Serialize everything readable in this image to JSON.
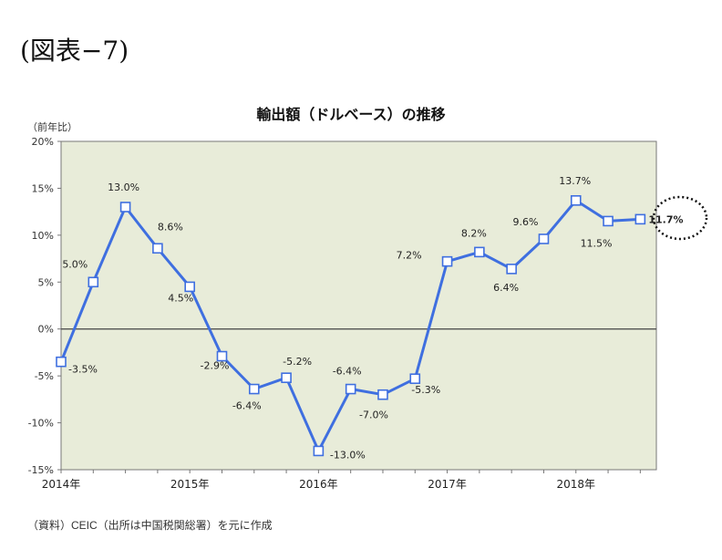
{
  "figure_label": "(図表−7)",
  "source_note": "（資料）CEIC（出所は中国税関総署）を元に作成",
  "colors": {
    "plot_background": "#e8ecd9",
    "line": "#3f6fe0",
    "zero_line": "#444444"
  },
  "chart_data": {
    "type": "line",
    "title": "輸出額（ドルベース）の推移",
    "ylabel": "（前年比）",
    "xlabel": "",
    "ylim": [
      -15,
      20
    ],
    "yticks": [
      -15,
      -10,
      -5,
      0,
      5,
      10,
      15,
      20
    ],
    "ytick_labels": [
      "-15%",
      "-10%",
      "-5%",
      "0%",
      "5%",
      "10%",
      "15%",
      "20%"
    ],
    "x_tick_labels": [
      "2014年",
      "2015年",
      "2016年",
      "2017年",
      "2018年"
    ],
    "grid": false,
    "series": [
      {
        "x": [
          "2014Q1",
          "2014Q2",
          "2014Q3",
          "2014Q4",
          "2015Q1",
          "2015Q2",
          "2015Q3",
          "2015Q4",
          "2016Q1",
          "2016Q2",
          "2016Q3",
          "2016Q4",
          "2017Q1",
          "2017Q2",
          "2017Q3",
          "2017Q4",
          "2018Q1",
          "2018Q2",
          "2018Q3"
        ],
        "values": [
          -3.5,
          5.0,
          13.0,
          8.6,
          4.5,
          -2.9,
          -6.4,
          -5.2,
          -13.0,
          -6.4,
          -7.0,
          -5.3,
          7.2,
          8.2,
          6.4,
          9.6,
          13.7,
          11.5,
          11.7
        ],
        "labels": [
          "-3.5%",
          "5.0%",
          "13.0%",
          "8.6%",
          "4.5%",
          "-2.9%",
          "-6.4%",
          "-5.2%",
          "-13.0%",
          "-6.4%",
          "-7.0%",
          "-5.3%",
          "7.2%",
          "8.2%",
          "6.4%",
          "9.6%",
          "13.7%",
          "11.5%",
          "11.7%"
        ]
      }
    ],
    "annotations": [
      "11.7% circled"
    ]
  }
}
